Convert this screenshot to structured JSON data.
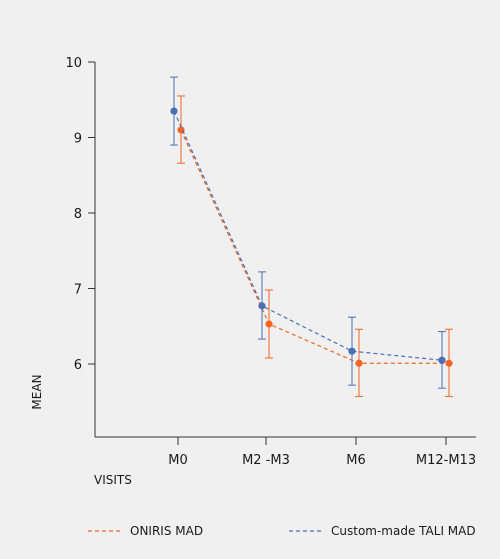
{
  "chart_data": {
    "type": "line",
    "xlabel": "VISITS",
    "ylabel": "MEAN",
    "categories": [
      "M0",
      "M2 -M3",
      "M6",
      "M12-M13"
    ],
    "ylim": [
      5,
      10
    ],
    "yticks": [
      6,
      7,
      8,
      9,
      10
    ],
    "grid": false,
    "legend_position": "bottom",
    "series": [
      {
        "name": "ONIRIS MAD",
        "color": "#f26522",
        "style": "dashed",
        "values": [
          9.1,
          6.53,
          6.01,
          6.01
        ],
        "error_low": [
          8.66,
          6.08,
          5.57,
          5.57
        ],
        "error_high": [
          9.55,
          6.98,
          6.46,
          6.46
        ]
      },
      {
        "name": "Custom-made TALI MAD",
        "color": "#4a6fb5",
        "style": "dashed",
        "values": [
          9.35,
          6.77,
          6.17,
          6.05
        ],
        "error_low": [
          8.9,
          6.33,
          5.72,
          5.68
        ],
        "error_high": [
          9.8,
          7.22,
          6.62,
          6.43
        ]
      }
    ]
  }
}
